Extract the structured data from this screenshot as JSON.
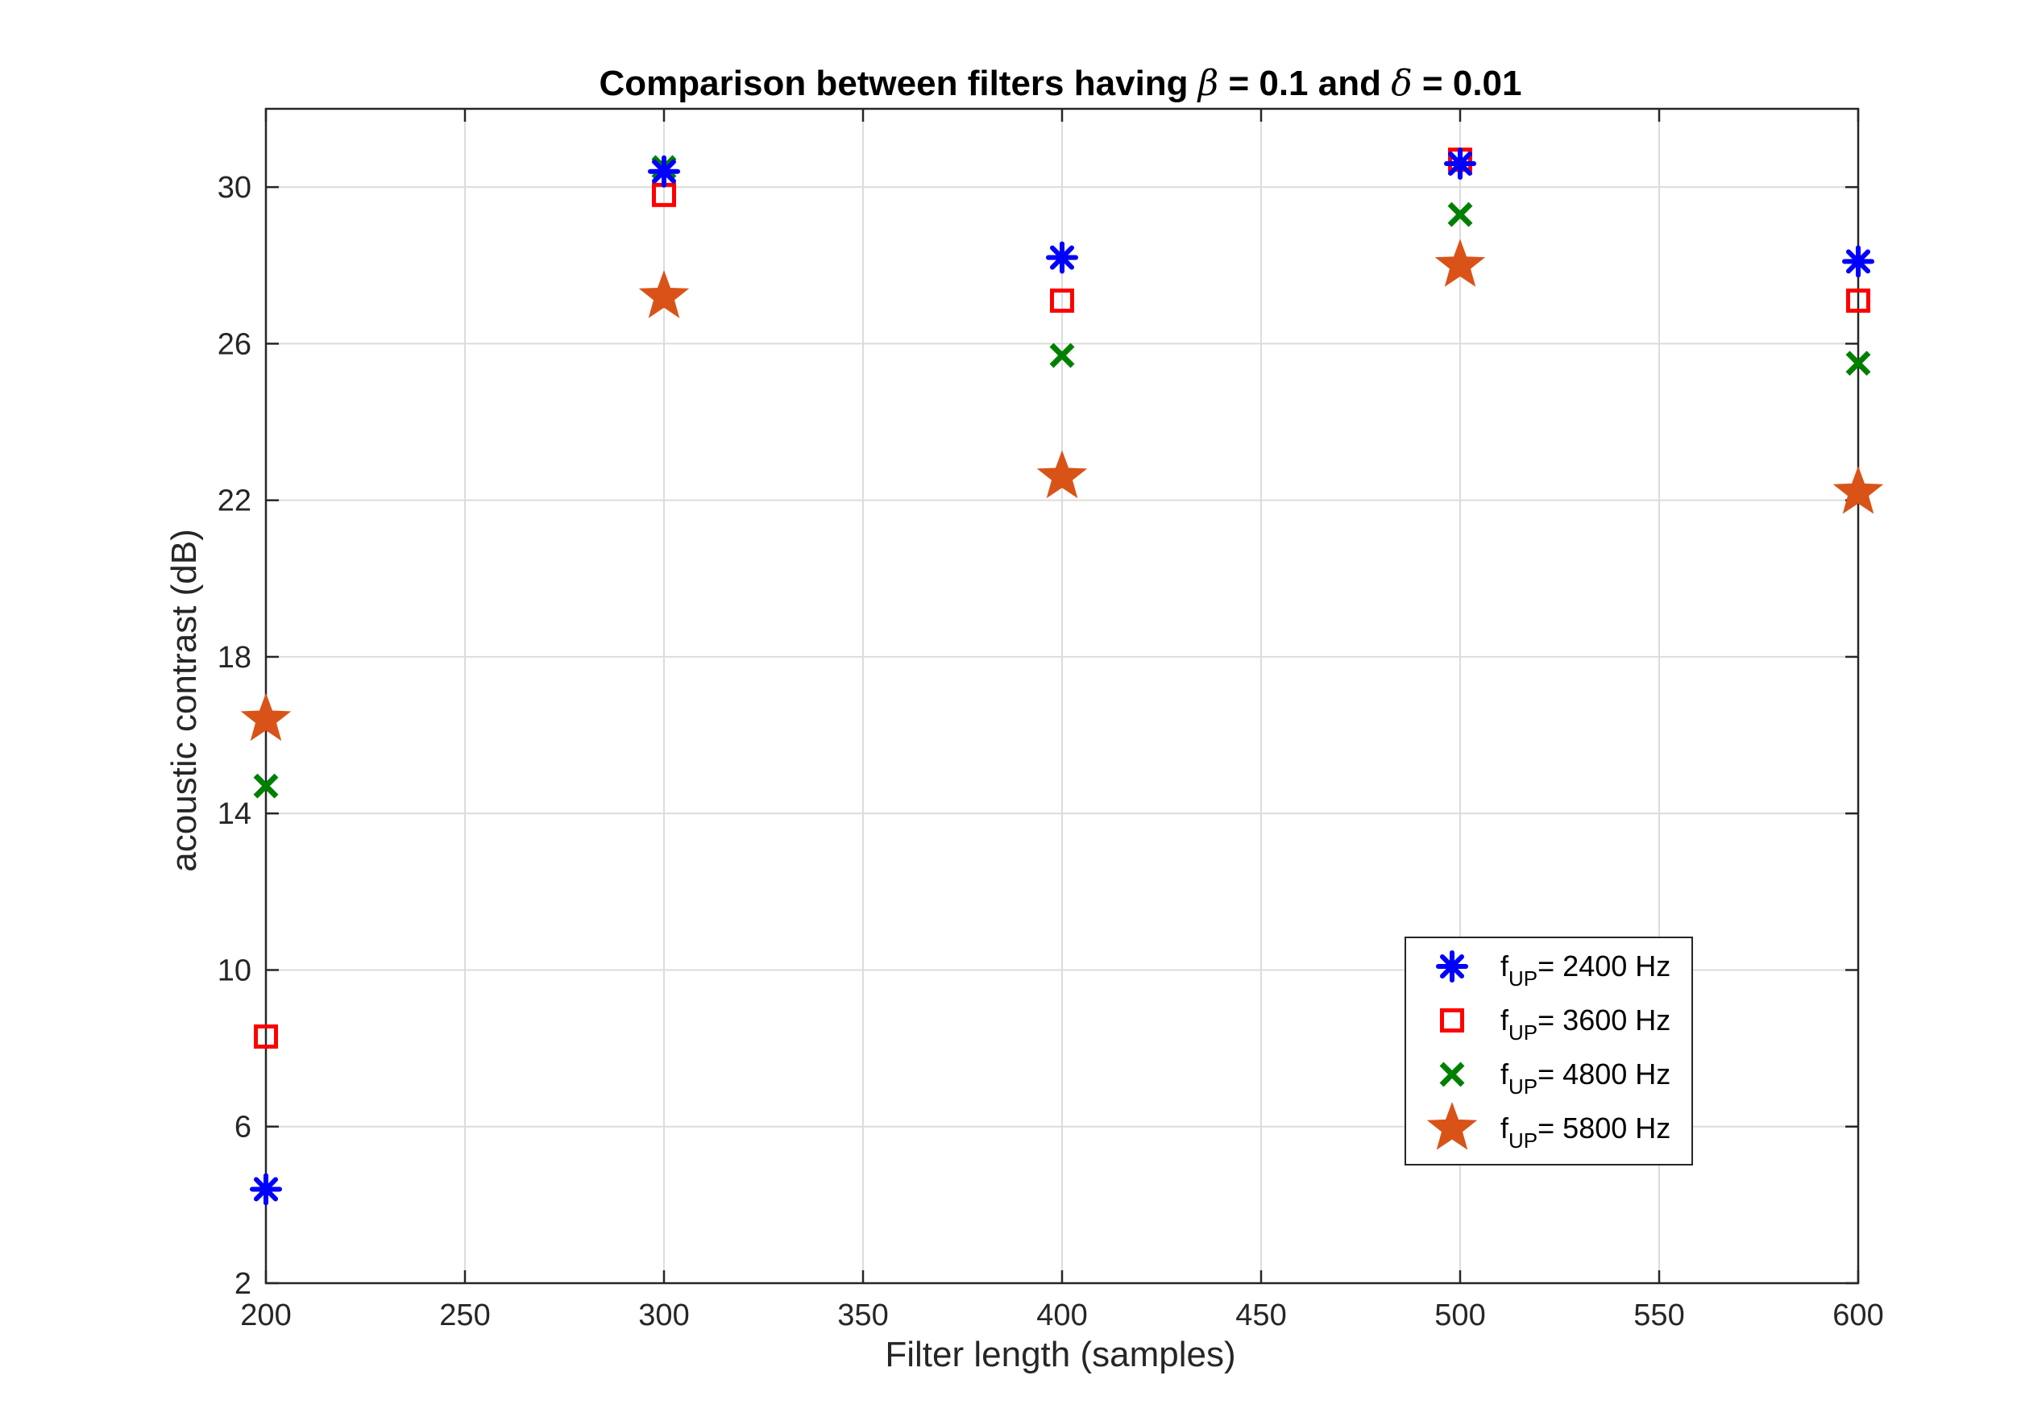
{
  "chart_data": {
    "type": "scatter",
    "title": {
      "prefix": "Comparison between filters having ",
      "sym1": "β",
      "mid": " = 0.1 and ",
      "sym2": "δ",
      "suffix": " = 0.01"
    },
    "xlabel": "Filter length (samples)",
    "ylabel": "acoustic contrast (dB)",
    "xlim": [
      200,
      600
    ],
    "ylim": [
      2,
      32
    ],
    "xticks": [
      200,
      250,
      300,
      350,
      400,
      450,
      500,
      550,
      600
    ],
    "yticks": [
      2,
      6,
      10,
      14,
      18,
      22,
      26,
      30
    ],
    "grid": true,
    "legend_position": "bottom-right",
    "x": [
      200,
      300,
      400,
      500,
      600
    ],
    "series": [
      {
        "name": "f_UP= 2400 Hz",
        "legend_base": "f",
        "legend_sub": "UP",
        "legend_rest": "= 2400 Hz",
        "marker": "asterisk",
        "color": "#0000ff",
        "values": [
          4.4,
          30.4,
          28.2,
          30.6,
          28.1
        ]
      },
      {
        "name": "f_UP= 3600 Hz",
        "legend_base": "f",
        "legend_sub": "UP",
        "legend_rest": "= 3600 Hz",
        "marker": "square",
        "color": "#ff0000",
        "values": [
          8.3,
          29.8,
          27.1,
          30.7,
          27.1
        ]
      },
      {
        "name": "f_UP= 4800 Hz",
        "legend_base": "f",
        "legend_sub": "UP",
        "legend_rest": "= 4800 Hz",
        "marker": "x",
        "color": "#008000",
        "values": [
          14.7,
          30.5,
          25.7,
          29.3,
          25.5
        ]
      },
      {
        "name": "f_UP= 5800 Hz",
        "legend_base": "f",
        "legend_sub": "UP",
        "legend_rest": "= 5800 Hz",
        "marker": "star",
        "color": "#d95319",
        "values": [
          16.4,
          27.2,
          22.6,
          28.0,
          22.2
        ]
      }
    ]
  }
}
